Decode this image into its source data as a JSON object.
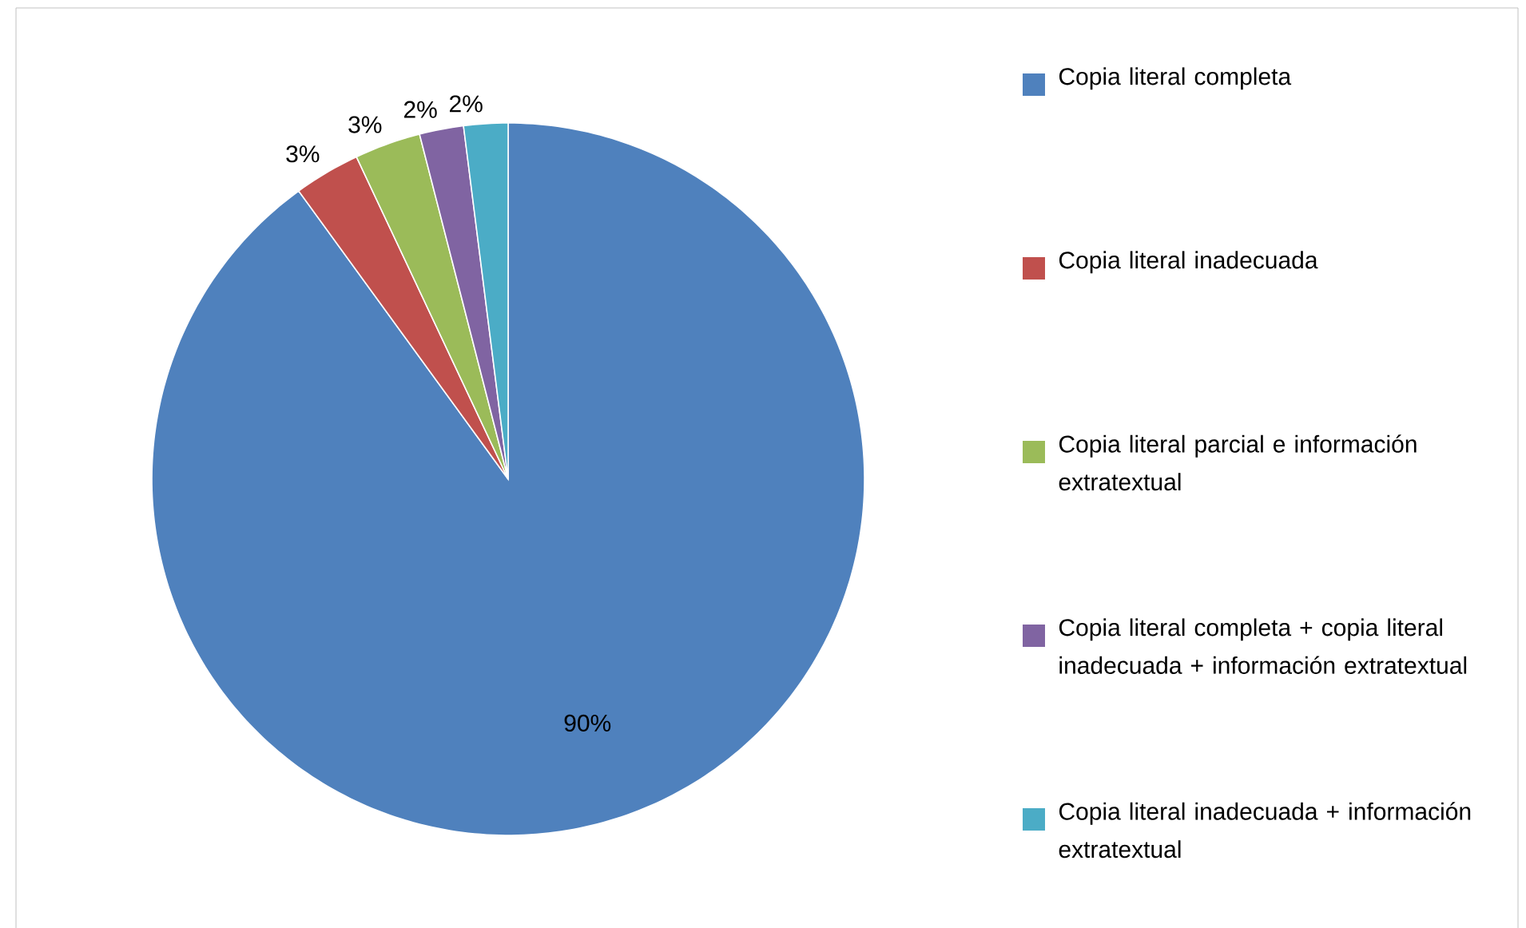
{
  "chart_data": {
    "type": "pie",
    "categories": [
      "Copia literal completa",
      "Copia literal inadecuada",
      "Copia literal parcial e información extratextual",
      "Copia literal completa + copia literal inadecuada + información extratextual",
      "Copia literal inadecuada + información extratextual"
    ],
    "values": [
      90,
      3,
      3,
      2,
      2
    ],
    "colors": [
      "#4f81bd",
      "#c0504d",
      "#9bbb59",
      "#8064a2",
      "#4bacc6"
    ],
    "value_labels": [
      "90%",
      "3%",
      "3%",
      "2%",
      "2%"
    ],
    "legend": "right"
  }
}
